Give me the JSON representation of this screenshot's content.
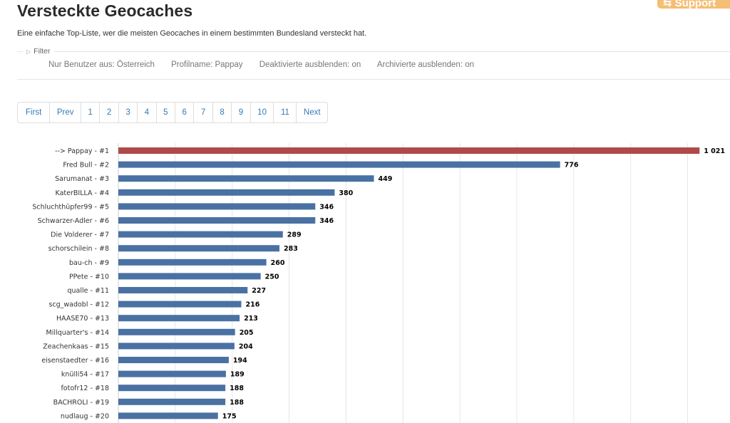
{
  "header": {
    "title": "Versteckte Geocaches",
    "subtitle": "Eine einfache Top-Liste, wer die meisten Geocaches in einem bestimmten Bundesland versteckt hat.",
    "support_label": "Support"
  },
  "filter": {
    "legend": "Filter",
    "items": [
      "Nur Benutzer aus: Österreich",
      "Profilname: Pappay",
      "Deaktivierte ausblenden: on",
      "Archivierte ausblenden: on"
    ]
  },
  "pagination": [
    "First",
    "Prev",
    "1",
    "2",
    "3",
    "4",
    "5",
    "6",
    "7",
    "8",
    "9",
    "10",
    "11",
    "Next"
  ],
  "colors": {
    "highlight": "#b04a4a",
    "bar": "#4a71a3"
  },
  "chart_data": {
    "type": "bar",
    "orientation": "horizontal",
    "categories": [
      "--> Pappay - #1",
      "Fred Bull - #2",
      "Sarumanat - #3",
      "KaterBILLA - #4",
      "Schluchthüpfer99 - #5",
      "Schwarzer-Adler - #6",
      "Die Volderer - #7",
      "schorschilein - #8",
      "bau-ch - #9",
      "PPete - #10",
      "qualle - #11",
      "scg_wadobl - #12",
      "HAASE70 - #13",
      "Millquarter's - #14",
      "Zeachenkaas - #15",
      "eisenstaedter - #16",
      "knülli54 - #17",
      "fotofr12 - #18",
      "BACHROLI - #19",
      "nudlaug - #20"
    ],
    "values": [
      1021,
      776,
      449,
      380,
      346,
      346,
      289,
      283,
      260,
      250,
      227,
      216,
      213,
      205,
      204,
      194,
      189,
      188,
      188,
      175
    ],
    "value_labels": [
      "1 021",
      "776",
      "449",
      "380",
      "346",
      "346",
      "289",
      "283",
      "260",
      "250",
      "227",
      "216",
      "213",
      "205",
      "204",
      "194",
      "189",
      "188",
      "188",
      "175"
    ],
    "highlight_index": 0,
    "xlim": [
      0,
      1025
    ],
    "grid": true
  }
}
